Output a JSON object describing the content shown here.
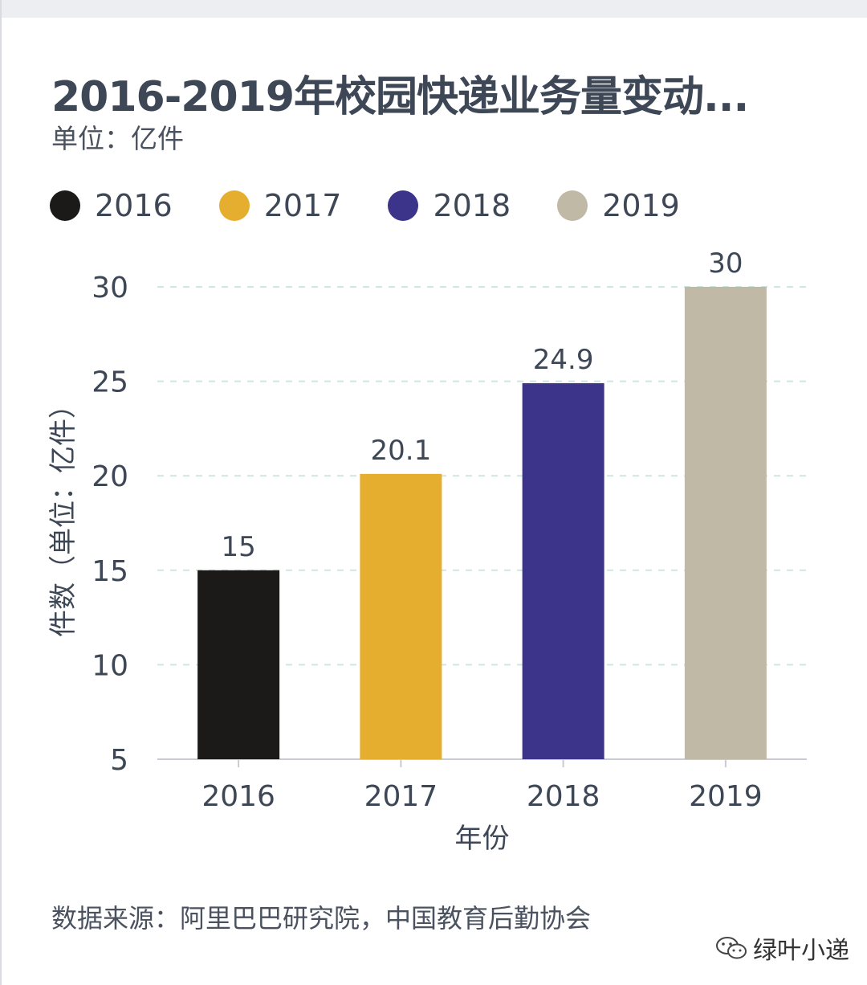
{
  "title": "2016-2019年校园快递业务量变动...",
  "subtitle": "单位：亿件",
  "source": "数据来源：阿里巴巴研究院，中国教育后勤协会",
  "watermark": "绿叶小递",
  "colors": {
    "text": "#3e4756",
    "axis": "#c8ccd2",
    "grid": "#cfe6e2"
  },
  "chart_data": {
    "type": "bar",
    "categories": [
      "2016",
      "2017",
      "2018",
      "2019"
    ],
    "values": [
      15,
      20.1,
      24.9,
      30
    ],
    "value_labels": [
      "15",
      "20.1",
      "24.9",
      "30"
    ],
    "colors": [
      "#1b1a18",
      "#e6ae2e",
      "#3c348a",
      "#c0b9a5"
    ],
    "legend": [
      "2016",
      "2017",
      "2018",
      "2019"
    ],
    "legend_position": "top-left",
    "xlabel": "年份",
    "ylabel": "件数（单位：亿件）",
    "ylim": [
      5,
      30
    ],
    "yticks": [
      "5",
      "10",
      "15",
      "20",
      "25",
      "30"
    ],
    "grid": "horizontal dashed"
  }
}
